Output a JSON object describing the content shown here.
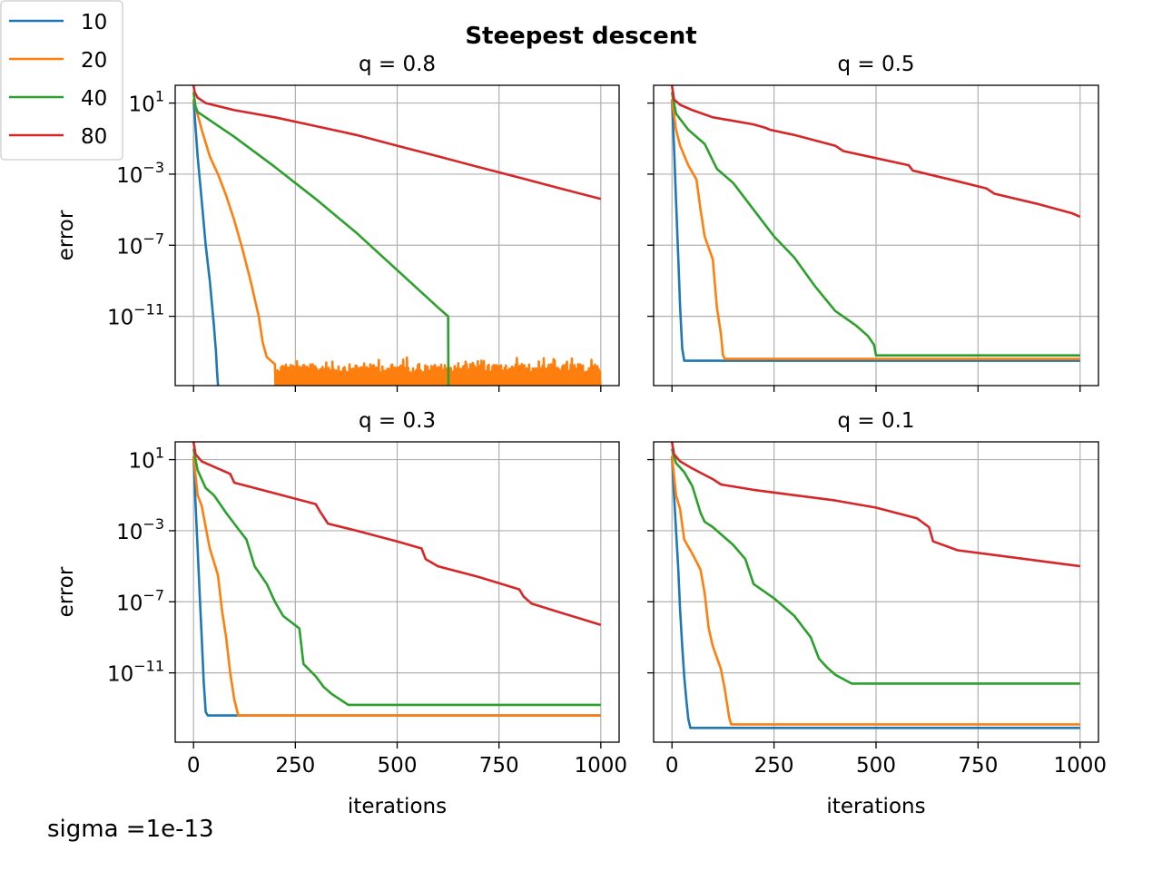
{
  "figure": {
    "title": "Steepest descent",
    "footnote": "sigma =1e-13"
  },
  "legend": {
    "placement": "top-left",
    "entries": [
      {
        "label": "10",
        "color": "#1f77b4"
      },
      {
        "label": "20",
        "color": "#ff7f0e"
      },
      {
        "label": "40",
        "color": "#2ca02c"
      },
      {
        "label": "80",
        "color": "#d62728"
      }
    ]
  },
  "chart_data": [
    {
      "type": "line",
      "title": "q = 0.8",
      "xlabel": "",
      "ylabel": "error",
      "yscale": "log",
      "xlim": [
        -45,
        1045
      ],
      "ylim_log10": [
        -14.9,
        2.0
      ],
      "xticks": [
        0,
        250,
        500,
        750,
        1000
      ],
      "xtick_labels": [],
      "yticks_log10": [
        1,
        -3,
        -7,
        -11
      ],
      "ytick_labels": [
        [
          "10",
          "1"
        ],
        [
          "10",
          "−3"
        ],
        [
          "10",
          "−7"
        ],
        [
          "10",
          "−11"
        ]
      ],
      "grid": true,
      "series": [
        {
          "name": "10",
          "color": "#1f77b4",
          "x": [
            0,
            10,
            20,
            30,
            40,
            50,
            55,
            58,
            62
          ],
          "log10_y": [
            1.2,
            -2.0,
            -4.5,
            -7.0,
            -9.0,
            -11.5,
            -13.0,
            -14.2,
            -15.5
          ]
        },
        {
          "name": "20",
          "color": "#ff7f0e",
          "x": [
            0,
            20,
            40,
            60,
            80,
            100,
            120,
            140,
            160,
            170,
            180,
            200
          ],
          "log10_y": [
            1.2,
            -0.5,
            -2.0,
            -3.0,
            -4.2,
            -5.6,
            -7.2,
            -9.0,
            -11.0,
            -12.5,
            -13.3,
            -13.7
          ],
          "noise": {
            "x": [
              200,
              1000
            ],
            "log10_y_top": -13.7,
            "log10_y_bottom": -14.9
          }
        },
        {
          "name": "40",
          "color": "#2ca02c",
          "x": [
            0,
            5,
            10,
            100,
            200,
            300,
            400,
            500,
            600,
            625,
            626,
            627
          ],
          "log10_y": [
            1.6,
            0.8,
            0.5,
            -0.9,
            -2.6,
            -4.4,
            -6.3,
            -8.4,
            -10.5,
            -11.0,
            -14.9,
            -15.5
          ]
        },
        {
          "name": "80",
          "color": "#d62728",
          "x": [
            0,
            3,
            10,
            30,
            100,
            200,
            300,
            400,
            500,
            600,
            700,
            800,
            900,
            1000
          ],
          "log10_y": [
            2.0,
            1.6,
            1.3,
            1.0,
            0.6,
            0.2,
            -0.3,
            -0.8,
            -1.4,
            -2.0,
            -2.6,
            -3.2,
            -3.8,
            -4.4
          ]
        }
      ]
    },
    {
      "type": "line",
      "title": "q = 0.5",
      "xlabel": "",
      "ylabel": "",
      "yscale": "log",
      "xlim": [
        -45,
        1045
      ],
      "ylim_log10": [
        -14.9,
        2.0
      ],
      "xticks": [
        0,
        250,
        500,
        750,
        1000
      ],
      "xtick_labels": [],
      "yticks_log10": [
        1,
        -3,
        -7,
        -11
      ],
      "ytick_labels": [],
      "grid": true,
      "series": [
        {
          "name": "10",
          "color": "#1f77b4",
          "x": [
            0,
            5,
            10,
            15,
            20,
            25,
            30,
            1000
          ],
          "log10_y": [
            1.2,
            -1.5,
            -4.5,
            -7.5,
            -10.5,
            -12.8,
            -13.5,
            -13.5
          ]
        },
        {
          "name": "20",
          "color": "#ff7f0e",
          "x": [
            0,
            10,
            20,
            40,
            60,
            70,
            80,
            100,
            110,
            120,
            125,
            130,
            1000
          ],
          "log10_y": [
            1.2,
            -0.5,
            -1.4,
            -2.5,
            -3.3,
            -5.0,
            -6.5,
            -7.8,
            -10.5,
            -12.0,
            -13.2,
            -13.4,
            -13.4
          ]
        },
        {
          "name": "40",
          "color": "#2ca02c",
          "x": [
            0,
            10,
            40,
            80,
            110,
            150,
            200,
            250,
            300,
            350,
            400,
            450,
            480,
            495,
            500,
            1000
          ],
          "log10_y": [
            1.6,
            0.4,
            -0.5,
            -1.3,
            -2.7,
            -3.5,
            -5.0,
            -6.5,
            -7.7,
            -9.3,
            -10.7,
            -11.5,
            -12.1,
            -12.6,
            -13.2,
            -13.2
          ]
        },
        {
          "name": "80",
          "color": "#d62728",
          "x": [
            0,
            5,
            20,
            50,
            100,
            150,
            200,
            230,
            240,
            300,
            400,
            420,
            500,
            580,
            590,
            700,
            770,
            790,
            900,
            980,
            1000
          ],
          "log10_y": [
            2.0,
            1.2,
            0.9,
            0.6,
            0.2,
            0.0,
            -0.2,
            -0.4,
            -0.5,
            -0.8,
            -1.4,
            -1.7,
            -2.1,
            -2.5,
            -2.8,
            -3.4,
            -3.8,
            -4.1,
            -4.7,
            -5.2,
            -5.4
          ]
        }
      ]
    },
    {
      "type": "line",
      "title": "q = 0.3",
      "xlabel": "iterations",
      "ylabel": "error",
      "yscale": "log",
      "xlim": [
        -45,
        1045
      ],
      "ylim_log10": [
        -14.9,
        2.0
      ],
      "xticks": [
        0,
        250,
        500,
        750,
        1000
      ],
      "xtick_labels": [
        "0",
        "250",
        "500",
        "750",
        "1000"
      ],
      "yticks_log10": [
        1,
        -3,
        -7,
        -11
      ],
      "ytick_labels": [
        [
          "10",
          "1"
        ],
        [
          "10",
          "−3"
        ],
        [
          "10",
          "−7"
        ],
        [
          "10",
          "−11"
        ]
      ],
      "grid": true,
      "series": [
        {
          "name": "10",
          "color": "#1f77b4",
          "x": [
            0,
            5,
            10,
            15,
            20,
            25,
            30,
            35,
            1000
          ],
          "log10_y": [
            1.2,
            -1.5,
            -4.0,
            -6.5,
            -9.0,
            -11.5,
            -13.2,
            -13.4,
            -13.4
          ]
        },
        {
          "name": "20",
          "color": "#ff7f0e",
          "x": [
            0,
            10,
            20,
            30,
            40,
            60,
            70,
            80,
            90,
            100,
            110,
            1000
          ],
          "log10_y": [
            1.2,
            -1.0,
            -1.6,
            -2.8,
            -4.0,
            -5.5,
            -7.5,
            -9.0,
            -11.0,
            -12.5,
            -13.4,
            -13.4
          ]
        },
        {
          "name": "40",
          "color": "#2ca02c",
          "x": [
            0,
            10,
            30,
            50,
            80,
            110,
            130,
            150,
            180,
            200,
            220,
            260,
            270,
            300,
            320,
            340,
            380,
            1000
          ],
          "log10_y": [
            1.6,
            0.4,
            -0.6,
            -1.0,
            -2.0,
            -2.9,
            -3.5,
            -5.0,
            -6.0,
            -7.0,
            -7.8,
            -8.5,
            -10.5,
            -11.2,
            -11.8,
            -12.2,
            -12.8,
            -12.8
          ]
        },
        {
          "name": "80",
          "color": "#d62728",
          "x": [
            0,
            5,
            20,
            50,
            90,
            100,
            150,
            200,
            300,
            310,
            330,
            400,
            500,
            560,
            570,
            600,
            700,
            800,
            810,
            830,
            900,
            1000
          ],
          "log10_y": [
            2.0,
            1.3,
            0.9,
            0.6,
            0.2,
            -0.3,
            -0.6,
            -0.9,
            -1.5,
            -1.9,
            -2.6,
            -3.0,
            -3.6,
            -4.0,
            -4.6,
            -5.0,
            -5.6,
            -6.3,
            -6.7,
            -7.1,
            -7.6,
            -8.3
          ]
        }
      ]
    },
    {
      "type": "line",
      "title": "q = 0.1",
      "xlabel": "iterations",
      "ylabel": "",
      "yscale": "log",
      "xlim": [
        -45,
        1045
      ],
      "ylim_log10": [
        -14.9,
        2.0
      ],
      "xticks": [
        0,
        250,
        500,
        750,
        1000
      ],
      "xtick_labels": [
        "0",
        "250",
        "500",
        "750",
        "1000"
      ],
      "yticks_log10": [
        1,
        -3,
        -7,
        -11
      ],
      "ytick_labels": [],
      "grid": true,
      "series": [
        {
          "name": "10",
          "color": "#1f77b4",
          "x": [
            0,
            5,
            10,
            15,
            20,
            25,
            30,
            35,
            40,
            45,
            1000
          ],
          "log10_y": [
            1.2,
            -1.0,
            -3.0,
            -5.0,
            -7.5,
            -9.5,
            -11.2,
            -12.5,
            -13.6,
            -14.1,
            -14.1
          ]
        },
        {
          "name": "20",
          "color": "#ff7f0e",
          "x": [
            0,
            10,
            20,
            30,
            50,
            70,
            80,
            90,
            100,
            120,
            130,
            140,
            145,
            1000
          ],
          "log10_y": [
            1.2,
            -1.0,
            -1.8,
            -3.5,
            -4.3,
            -5.2,
            -6.5,
            -8.5,
            -9.5,
            -10.8,
            -12.0,
            -13.5,
            -13.9,
            -13.9
          ]
        },
        {
          "name": "40",
          "color": "#2ca02c",
          "x": [
            0,
            10,
            30,
            50,
            70,
            80,
            100,
            150,
            180,
            200,
            250,
            300,
            340,
            360,
            380,
            400,
            440,
            1000
          ],
          "log10_y": [
            1.6,
            0.8,
            0.3,
            -0.5,
            -2.0,
            -2.5,
            -2.8,
            -3.8,
            -4.6,
            -6.0,
            -6.8,
            -7.8,
            -9.0,
            -10.2,
            -10.7,
            -11.1,
            -11.6,
            -11.6
          ]
        },
        {
          "name": "80",
          "color": "#d62728",
          "x": [
            0,
            5,
            20,
            50,
            100,
            120,
            200,
            300,
            400,
            500,
            600,
            630,
            640,
            700,
            800,
            900,
            1000
          ],
          "log10_y": [
            2.0,
            1.3,
            0.9,
            0.5,
            -0.1,
            -0.4,
            -0.7,
            -1.0,
            -1.3,
            -1.7,
            -2.3,
            -2.8,
            -3.6,
            -4.1,
            -4.4,
            -4.7,
            -5.0
          ]
        }
      ]
    }
  ]
}
